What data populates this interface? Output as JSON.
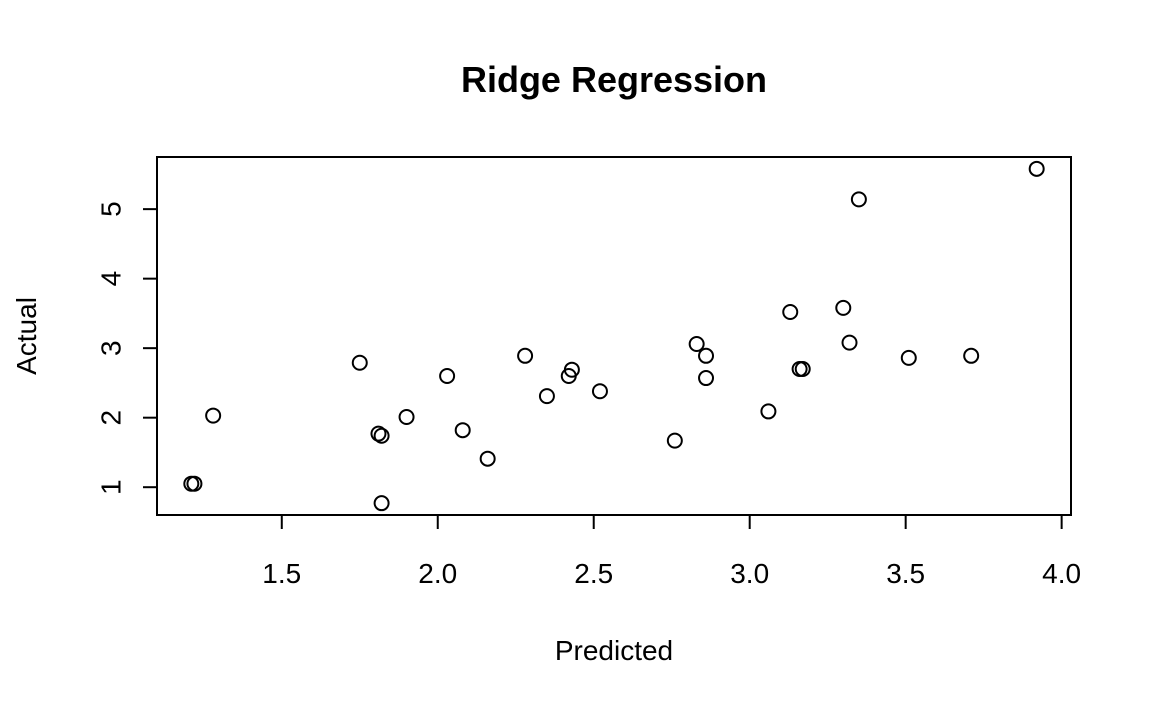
{
  "chart_data": {
    "type": "scatter",
    "title": "Ridge Regression",
    "xlabel": "Predicted",
    "ylabel": "Actual",
    "xlim": [
      1.1,
      4.03
    ],
    "ylim": [
      0.6,
      5.75
    ],
    "xticks": [
      1.5,
      2.0,
      2.5,
      3.0,
      3.5,
      4.0
    ],
    "xtick_labels": [
      "1.5",
      "2.0",
      "2.5",
      "3.0",
      "3.5",
      "4.0"
    ],
    "yticks": [
      1,
      2,
      3,
      4,
      5
    ],
    "ytick_labels": [
      "1",
      "2",
      "3",
      "4",
      "5"
    ],
    "grid": false,
    "points": [
      {
        "x": 1.21,
        "y": 1.05
      },
      {
        "x": 1.22,
        "y": 1.05
      },
      {
        "x": 1.28,
        "y": 2.03
      },
      {
        "x": 1.75,
        "y": 2.79
      },
      {
        "x": 1.81,
        "y": 1.77
      },
      {
        "x": 1.82,
        "y": 1.74
      },
      {
        "x": 1.82,
        "y": 0.77
      },
      {
        "x": 1.9,
        "y": 2.01
      },
      {
        "x": 2.03,
        "y": 2.6
      },
      {
        "x": 2.08,
        "y": 1.82
      },
      {
        "x": 2.16,
        "y": 1.41
      },
      {
        "x": 2.28,
        "y": 2.89
      },
      {
        "x": 2.35,
        "y": 2.31
      },
      {
        "x": 2.42,
        "y": 2.6
      },
      {
        "x": 2.43,
        "y": 2.69
      },
      {
        "x": 2.52,
        "y": 2.38
      },
      {
        "x": 2.76,
        "y": 1.67
      },
      {
        "x": 2.83,
        "y": 3.06
      },
      {
        "x": 2.86,
        "y": 2.89
      },
      {
        "x": 2.86,
        "y": 2.57
      },
      {
        "x": 3.06,
        "y": 2.09
      },
      {
        "x": 3.13,
        "y": 3.52
      },
      {
        "x": 3.16,
        "y": 2.7
      },
      {
        "x": 3.17,
        "y": 2.7
      },
      {
        "x": 3.3,
        "y": 3.58
      },
      {
        "x": 3.32,
        "y": 3.08
      },
      {
        "x": 3.35,
        "y": 5.14
      },
      {
        "x": 3.51,
        "y": 2.86
      },
      {
        "x": 3.71,
        "y": 2.89
      },
      {
        "x": 3.92,
        "y": 5.58
      }
    ]
  }
}
